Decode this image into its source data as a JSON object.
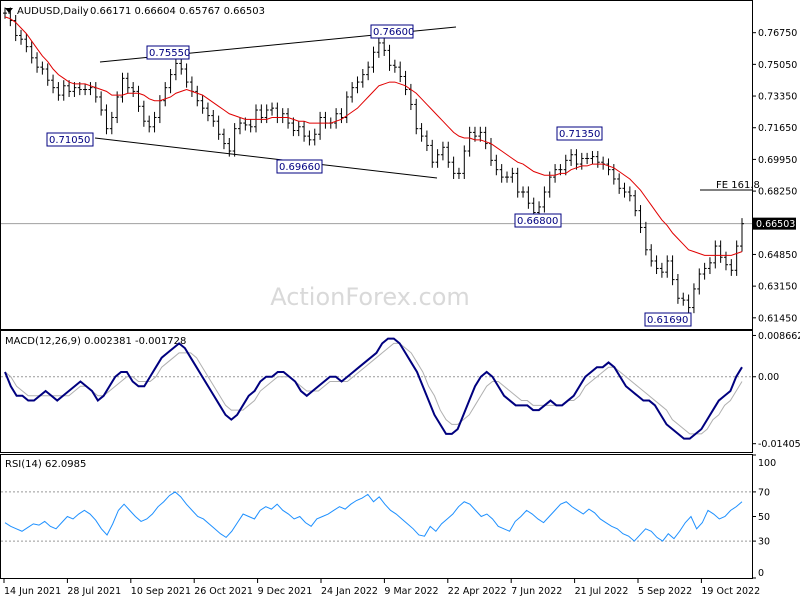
{
  "header": {
    "symbol_text": "AUDUSD,Daily",
    "ohlc_text": "0.66171 0.66604 0.65767 0.66503"
  },
  "watermark": "ActionForex.com",
  "colors": {
    "bars": "#000000",
    "ma": "#e00000",
    "macd": "#00007f",
    "signal": "#b0b0b0",
    "rsi": "#1e90ff",
    "trendline": "#000000",
    "label_border": "#000080"
  },
  "chart_data": [
    {
      "type": "ohlc",
      "panel": "price",
      "title": "AUDUSD,Daily",
      "ylim": [
        0.6085,
        0.7845
      ],
      "y_ticks": [
        "0.76750",
        "0.75050",
        "0.73350",
        "0.71650",
        "0.69950",
        "0.68250",
        "0.66503",
        "0.64850",
        "0.63150",
        "0.61450"
      ],
      "current_price": 0.66503,
      "current_price_label": "0.66503",
      "x_ticks": [
        "14 Jun 2021",
        "28 Jul 2021",
        "10 Sep 2021",
        "26 Oct 2021",
        "9 Dec 2021",
        "24 Jan 2022",
        "9 Mar 2022",
        "22 Apr 2022",
        "7 Jun 2022",
        "21 Jul 2022",
        "5 Sep 2022",
        "19 Oct 2022"
      ],
      "close_path": [
        0.778,
        0.774,
        0.766,
        0.764,
        0.76,
        0.754,
        0.749,
        0.748,
        0.742,
        0.738,
        0.734,
        0.739,
        0.736,
        0.738,
        0.737,
        0.737,
        0.738,
        0.733,
        0.726,
        0.716,
        0.722,
        0.733,
        0.743,
        0.738,
        0.736,
        0.728,
        0.72,
        0.717,
        0.722,
        0.731,
        0.738,
        0.745,
        0.751,
        0.748,
        0.741,
        0.736,
        0.731,
        0.727,
        0.723,
        0.72,
        0.713,
        0.708,
        0.704,
        0.716,
        0.719,
        0.718,
        0.717,
        0.726,
        0.722,
        0.726,
        0.727,
        0.722,
        0.724,
        0.719,
        0.715,
        0.717,
        0.712,
        0.71,
        0.713,
        0.722,
        0.719,
        0.719,
        0.724,
        0.722,
        0.733,
        0.738,
        0.741,
        0.745,
        0.749,
        0.757,
        0.762,
        0.758,
        0.75,
        0.749,
        0.744,
        0.737,
        0.729,
        0.716,
        0.712,
        0.707,
        0.698,
        0.702,
        0.706,
        0.698,
        0.692,
        0.692,
        0.704,
        0.714,
        0.712,
        0.714,
        0.708,
        0.699,
        0.694,
        0.69,
        0.69,
        0.692,
        0.682,
        0.682,
        0.676,
        0.671,
        0.674,
        0.682,
        0.69,
        0.694,
        0.694,
        0.699,
        0.702,
        0.697,
        0.7,
        0.7,
        0.701,
        0.698,
        0.697,
        0.694,
        0.689,
        0.684,
        0.682,
        0.68,
        0.672,
        0.663,
        0.651,
        0.645,
        0.641,
        0.639,
        0.645,
        0.635,
        0.625,
        0.624,
        0.62,
        0.63,
        0.638,
        0.641,
        0.644,
        0.653,
        0.647,
        0.643,
        0.64,
        0.653,
        0.665
      ],
      "ma_path": [
        0.776,
        0.775,
        0.773,
        0.77,
        0.767,
        0.763,
        0.759,
        0.755,
        0.752,
        0.748,
        0.745,
        0.743,
        0.741,
        0.74,
        0.74,
        0.74,
        0.739,
        0.738,
        0.737,
        0.736,
        0.734,
        0.734,
        0.734,
        0.735,
        0.735,
        0.735,
        0.734,
        0.732,
        0.731,
        0.731,
        0.732,
        0.733,
        0.735,
        0.736,
        0.737,
        0.736,
        0.735,
        0.734,
        0.732,
        0.73,
        0.728,
        0.726,
        0.724,
        0.723,
        0.722,
        0.721,
        0.721,
        0.721,
        0.721,
        0.721,
        0.722,
        0.722,
        0.722,
        0.722,
        0.721,
        0.72,
        0.72,
        0.719,
        0.719,
        0.719,
        0.719,
        0.719,
        0.72,
        0.721,
        0.723,
        0.725,
        0.727,
        0.73,
        0.733,
        0.736,
        0.739,
        0.74,
        0.741,
        0.741,
        0.74,
        0.739,
        0.737,
        0.735,
        0.732,
        0.729,
        0.726,
        0.723,
        0.72,
        0.717,
        0.714,
        0.712,
        0.711,
        0.711,
        0.71,
        0.71,
        0.709,
        0.708,
        0.706,
        0.704,
        0.702,
        0.7,
        0.698,
        0.697,
        0.695,
        0.693,
        0.692,
        0.691,
        0.691,
        0.691,
        0.692,
        0.692,
        0.694,
        0.695,
        0.696,
        0.696,
        0.697,
        0.697,
        0.697,
        0.696,
        0.695,
        0.693,
        0.691,
        0.689,
        0.686,
        0.683,
        0.679,
        0.675,
        0.671,
        0.667,
        0.664,
        0.66,
        0.657,
        0.654,
        0.651,
        0.65,
        0.649,
        0.648,
        0.648,
        0.648,
        0.648,
        0.648,
        0.648,
        0.649,
        0.65
      ],
      "annotations": [
        {
          "label": "0.75550",
          "value": 0.7555
        },
        {
          "label": "0.76600",
          "value": 0.766
        },
        {
          "label": "0.71050",
          "value": 0.7105
        },
        {
          "label": "0.69660",
          "value": 0.6966
        },
        {
          "label": "0.71350",
          "value": 0.7135
        },
        {
          "label": "0.66800",
          "value": 0.668
        },
        {
          "label": "0.61690",
          "value": 0.6169
        },
        {
          "label": "FE 161.8",
          "value": 0.6855
        }
      ]
    },
    {
      "type": "line",
      "panel": "macd",
      "title": "MACD(12,26,9) 0.002381 -0.001728",
      "ylim": [
        -0.0158,
        0.0096
      ],
      "y_ticks": [
        "0.008662",
        "0.00",
        "-0.014055"
      ],
      "series": [
        {
          "name": "MACD",
          "values": [
            0.001,
            -0.002,
            -0.004,
            -0.004,
            -0.005,
            -0.005,
            -0.004,
            -0.003,
            -0.004,
            -0.005,
            -0.004,
            -0.003,
            -0.002,
            -0.001,
            -0.002,
            -0.003,
            -0.005,
            -0.004,
            -0.002,
            0.0,
            0.001,
            0.001,
            -0.001,
            -0.002,
            -0.002,
            0.0,
            0.002,
            0.004,
            0.005,
            0.006,
            0.007,
            0.006,
            0.004,
            0.002,
            0.0,
            -0.002,
            -0.004,
            -0.006,
            -0.008,
            -0.009,
            -0.008,
            -0.006,
            -0.004,
            -0.003,
            -0.001,
            0.0,
            0.0,
            0.001,
            0.001,
            0.0,
            -0.001,
            -0.003,
            -0.004,
            -0.003,
            -0.002,
            -0.001,
            0.0,
            0.0,
            -0.001,
            0.0,
            0.001,
            0.002,
            0.003,
            0.004,
            0.005,
            0.007,
            0.008,
            0.008,
            0.007,
            0.005,
            0.003,
            0.001,
            -0.002,
            -0.005,
            -0.008,
            -0.01,
            -0.012,
            -0.012,
            -0.011,
            -0.008,
            -0.005,
            -0.002,
            0.0,
            0.001,
            0.0,
            -0.002,
            -0.004,
            -0.005,
            -0.006,
            -0.006,
            -0.006,
            -0.007,
            -0.007,
            -0.006,
            -0.005,
            -0.006,
            -0.006,
            -0.005,
            -0.004,
            -0.002,
            0.0,
            0.001,
            0.002,
            0.002,
            0.003,
            0.002,
            0.0,
            -0.002,
            -0.003,
            -0.004,
            -0.005,
            -0.005,
            -0.006,
            -0.008,
            -0.01,
            -0.011,
            -0.012,
            -0.013,
            -0.013,
            -0.012,
            -0.011,
            -0.009,
            -0.007,
            -0.005,
            -0.004,
            -0.003,
            0.0,
            0.002
          ]
        },
        {
          "name": "Signal",
          "values": [
            0.001,
            0.0,
            -0.002,
            -0.003,
            -0.004,
            -0.004,
            -0.004,
            -0.004,
            -0.004,
            -0.004,
            -0.004,
            -0.004,
            -0.003,
            -0.002,
            -0.002,
            -0.003,
            -0.004,
            -0.004,
            -0.003,
            -0.002,
            -0.001,
            0.0,
            0.0,
            -0.001,
            -0.001,
            -0.001,
            0.0,
            0.002,
            0.003,
            0.004,
            0.005,
            0.005,
            0.005,
            0.004,
            0.002,
            0.0,
            -0.002,
            -0.004,
            -0.006,
            -0.007,
            -0.007,
            -0.007,
            -0.006,
            -0.005,
            -0.003,
            -0.002,
            -0.001,
            0.0,
            0.0,
            0.0,
            -0.001,
            -0.002,
            -0.003,
            -0.003,
            -0.003,
            -0.002,
            -0.001,
            -0.001,
            -0.001,
            -0.001,
            0.0,
            0.001,
            0.002,
            0.003,
            0.004,
            0.005,
            0.006,
            0.007,
            0.007,
            0.006,
            0.005,
            0.003,
            0.001,
            -0.002,
            -0.004,
            -0.007,
            -0.009,
            -0.01,
            -0.01,
            -0.009,
            -0.008,
            -0.006,
            -0.004,
            -0.002,
            -0.001,
            -0.001,
            -0.002,
            -0.003,
            -0.004,
            -0.005,
            -0.005,
            -0.006,
            -0.006,
            -0.006,
            -0.006,
            -0.006,
            -0.006,
            -0.005,
            -0.005,
            -0.004,
            -0.002,
            -0.001,
            0.0,
            0.001,
            0.002,
            0.002,
            0.001,
            0.0,
            -0.001,
            -0.002,
            -0.003,
            -0.004,
            -0.005,
            -0.006,
            -0.007,
            -0.009,
            -0.01,
            -0.011,
            -0.012,
            -0.012,
            -0.012,
            -0.011,
            -0.009,
            -0.008,
            -0.006,
            -0.005,
            -0.003,
            -0.001
          ]
        }
      ]
    },
    {
      "type": "line",
      "panel": "rsi",
      "title": "RSI(14) 62.0985",
      "ylim": [
        0,
        100
      ],
      "y_ticks": [
        100,
        70,
        50,
        30,
        0
      ],
      "levels": [
        70,
        30
      ],
      "series": [
        {
          "name": "RSI",
          "values": [
            45,
            42,
            40,
            38,
            41,
            44,
            43,
            46,
            42,
            40,
            45,
            50,
            48,
            52,
            55,
            52,
            47,
            40,
            35,
            44,
            55,
            60,
            55,
            50,
            46,
            48,
            52,
            58,
            62,
            67,
            70,
            66,
            60,
            55,
            50,
            48,
            44,
            40,
            36,
            33,
            38,
            45,
            52,
            50,
            48,
            55,
            58,
            56,
            60,
            55,
            52,
            48,
            50,
            45,
            42,
            48,
            50,
            52,
            55,
            58,
            56,
            60,
            63,
            65,
            68,
            62,
            66,
            60,
            55,
            52,
            48,
            44,
            40,
            35,
            34,
            42,
            38,
            44,
            48,
            52,
            58,
            62,
            60,
            55,
            50,
            52,
            48,
            42,
            40,
            38,
            46,
            50,
            55,
            52,
            48,
            45,
            50,
            55,
            60,
            62,
            58,
            55,
            52,
            56,
            53,
            48,
            45,
            42,
            40,
            36,
            34,
            30,
            35,
            40,
            38,
            33,
            30,
            36,
            32,
            38,
            45,
            50,
            40,
            45,
            55,
            52,
            48,
            50,
            55,
            58,
            62
          ]
        }
      ]
    }
  ]
}
